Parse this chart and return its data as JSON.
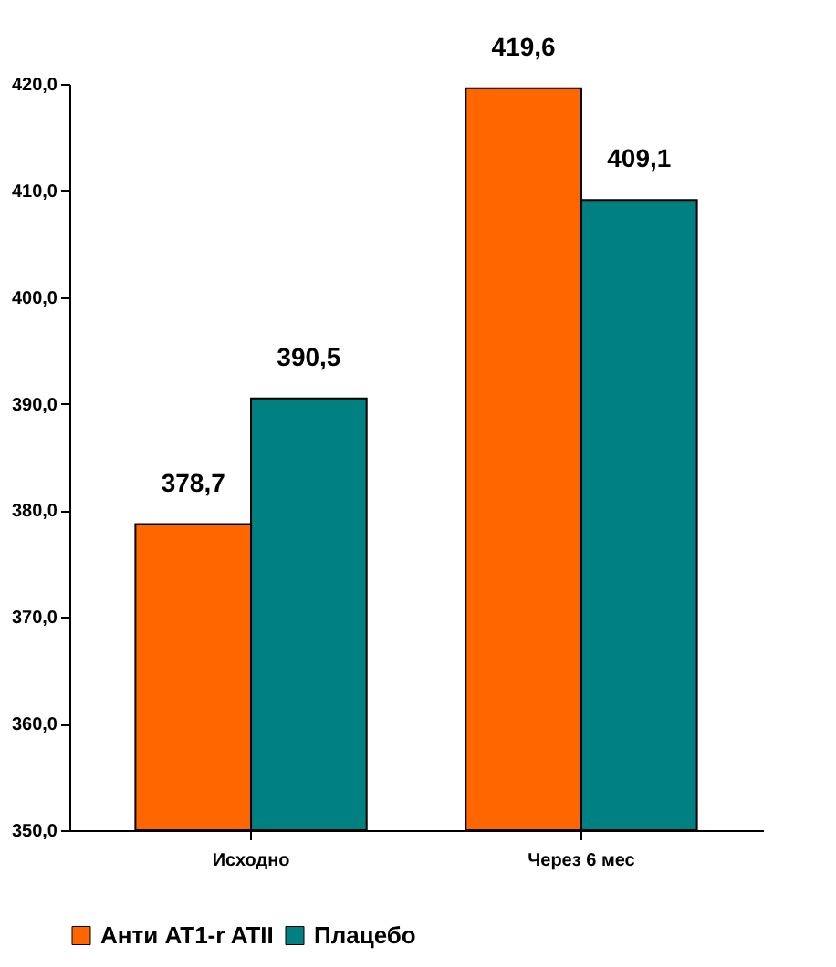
{
  "chart_data": {
    "type": "bar",
    "categories": [
      "Исходно",
      "Через 6 мес"
    ],
    "series": [
      {
        "name": "Анти AT1-r ATII",
        "color": "#ff6600",
        "values": [
          378.7,
          419.6
        ],
        "value_labels": [
          "378,7",
          "419,6"
        ]
      },
      {
        "name": "Плацебо",
        "color": "#008080",
        "values": [
          390.5,
          409.1
        ],
        "value_labels": [
          "390,5",
          "409,1"
        ]
      }
    ],
    "ylim": [
      350,
      420
    ],
    "yticks": [
      {
        "value": 350,
        "label": "350,0"
      },
      {
        "value": 360,
        "label": "360,0"
      },
      {
        "value": 370,
        "label": "370,0"
      },
      {
        "value": 380,
        "label": "380,0"
      },
      {
        "value": 390,
        "label": "390,0"
      },
      {
        "value": 400,
        "label": "400,0"
      },
      {
        "value": 410,
        "label": "410,0"
      },
      {
        "value": 420,
        "label": "420,0"
      }
    ],
    "grid": false,
    "legend": "bottom"
  }
}
